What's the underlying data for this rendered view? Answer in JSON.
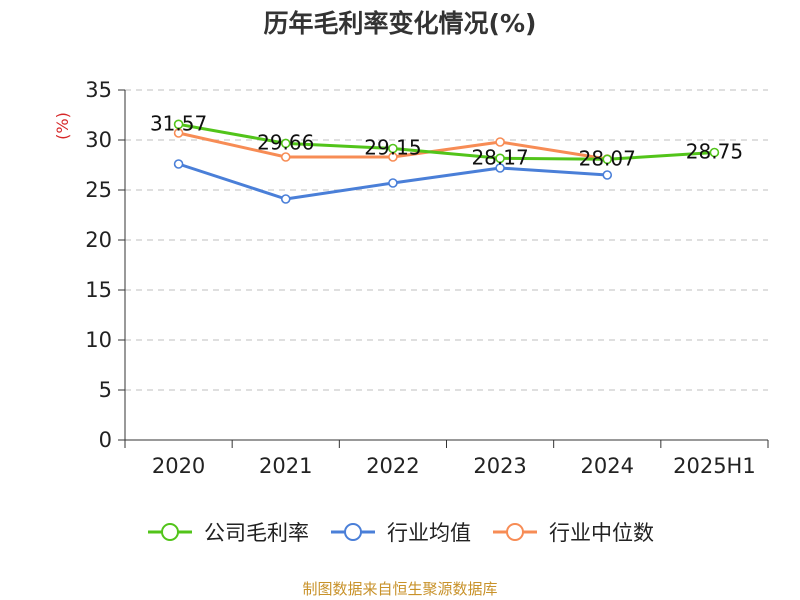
{
  "title": "历年毛利率变化情况(%)",
  "unit_label": "(%)",
  "source": "制图数据来自恒生聚源数据库",
  "colors": {
    "gross_margin": "#52c41a",
    "industry_mean": "#4a7fd8",
    "industry_median": "#f78c55",
    "unit": "#d62728",
    "source": "#c8922a",
    "grid": "#cccccc",
    "axis": "#333333"
  },
  "chart_data": {
    "type": "line",
    "title": "历年毛利率变化情况(%)",
    "xlabel": "",
    "ylabel": "(%)",
    "categories": [
      "2020",
      "2021",
      "2022",
      "2023",
      "2024",
      "2025H1"
    ],
    "ylim": [
      0,
      35
    ],
    "yticks": [
      0,
      5,
      10,
      15,
      20,
      25,
      30,
      35
    ],
    "grid": true,
    "legend_position": "bottom",
    "series": [
      {
        "name": "公司毛利率",
        "key": "gross_margin",
        "values": [
          31.57,
          29.66,
          29.15,
          28.17,
          28.07,
          28.75
        ],
        "labels": [
          "31.57",
          "29.66",
          "29.15",
          "28.17",
          "28.07",
          "28.75"
        ]
      },
      {
        "name": "行业均值",
        "key": "industry_mean",
        "values": [
          27.6,
          24.1,
          25.7,
          27.2,
          26.5,
          null
        ]
      },
      {
        "name": "行业中位数",
        "key": "industry_median",
        "values": [
          30.7,
          28.3,
          28.3,
          29.8,
          28.1,
          null
        ]
      }
    ]
  }
}
